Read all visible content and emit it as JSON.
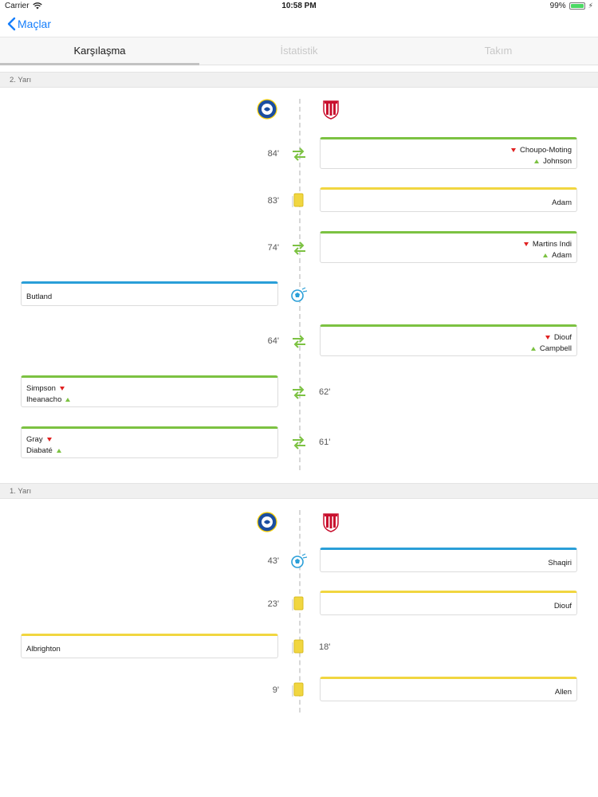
{
  "status": {
    "carrier": "Carrier",
    "time": "10:58 PM",
    "battery": "99%",
    "battery_level": 0.99
  },
  "nav": {
    "back_label": "Maçlar"
  },
  "tabs": [
    {
      "label": "Karşılaşma",
      "active": true
    },
    {
      "label": "İstatistik",
      "active": false
    },
    {
      "label": "Takım",
      "active": false
    }
  ],
  "colors": {
    "accent": "#157efb",
    "substitution": "#7cc242",
    "yellow_card": "#f1d640",
    "goal": "#2a9fd8",
    "sub_out": "#e02020"
  },
  "teams": {
    "home_logo": "leicester-crest-icon",
    "away_logo": "stoke-crest-icon"
  },
  "halves": [
    {
      "label": "2. Yarı",
      "events": [
        {
          "minute": "84'",
          "side": "away",
          "type": "substitution",
          "out": "Choupo-Moting",
          "in": "Johnson"
        },
        {
          "minute": "83'",
          "side": "away",
          "type": "yellow-card",
          "player": "Adam"
        },
        {
          "minute": "74'",
          "side": "away",
          "type": "substitution",
          "out": "Martins Indi",
          "in": "Adam"
        },
        {
          "minute": "",
          "side": "home",
          "type": "goal",
          "player": "Butland"
        },
        {
          "minute": "64'",
          "side": "away",
          "type": "substitution",
          "out": "Diouf",
          "in": "Campbell"
        },
        {
          "minute": "62'",
          "side": "home",
          "type": "substitution",
          "out": "Simpson",
          "in": "Iheanacho"
        },
        {
          "minute": "61'",
          "side": "home",
          "type": "substitution",
          "out": "Gray",
          "in": "Diabaté"
        }
      ]
    },
    {
      "label": "1. Yarı",
      "events": [
        {
          "minute": "43'",
          "side": "away",
          "type": "goal",
          "player": "Shaqiri"
        },
        {
          "minute": "23'",
          "side": "away",
          "type": "yellow-card",
          "player": "Diouf"
        },
        {
          "minute": "18'",
          "side": "home",
          "type": "yellow-card",
          "player": "Albrighton"
        },
        {
          "minute": "9'",
          "side": "away",
          "type": "yellow-card",
          "player": "Allen"
        }
      ]
    }
  ]
}
